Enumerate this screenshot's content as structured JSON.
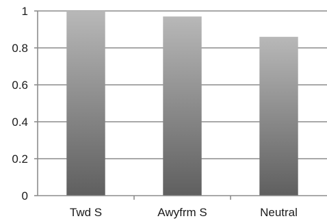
{
  "chart_data": {
    "type": "bar",
    "title": "",
    "xlabel": "",
    "ylabel": "",
    "categories": [
      "Twd S",
      "Awyfrm S",
      "Neutral"
    ],
    "values": [
      1.0,
      0.97,
      0.86
    ],
    "ylim": [
      0,
      1
    ],
    "yticks": [
      0,
      0.2,
      0.4,
      0.6,
      0.8,
      1
    ],
    "ytick_labels": [
      "0",
      "0.2",
      "0.4",
      "0.6",
      "0.8",
      "1"
    ],
    "grid": "horizontal",
    "legend": "none",
    "colors": {
      "bar_top": "#b8b8b8",
      "bar_bottom": "#5f5f5f",
      "gridline": "#8c8c8c",
      "axis": "#8c8c8c",
      "text": "#1a1a1a"
    }
  }
}
